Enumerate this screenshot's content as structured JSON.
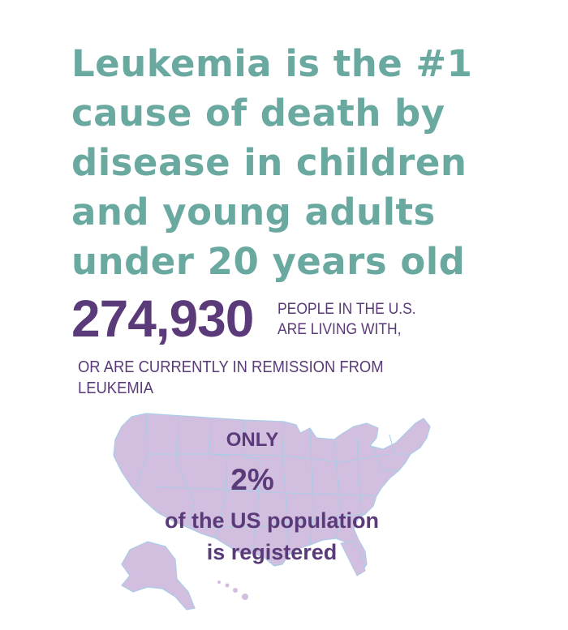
{
  "headline": {
    "lines": [
      "Leukemia is the #1",
      "cause of death by",
      "disease in children",
      "and young adults",
      "under 20 years old"
    ]
  },
  "stat": {
    "number": "274,930",
    "side_lines": [
      "PEOPLE IN THE U.S.",
      "ARE LIVING WITH,"
    ],
    "continuation_lines": [
      "OR ARE CURRENTLY IN REMISSION FROM",
      "LEUKEMIA"
    ]
  },
  "map": {
    "label_top": "ONLY",
    "percent": "2%",
    "line1": "of the US population",
    "line2": "is registered"
  },
  "colors": {
    "headline": "#6aa9a0",
    "stat_text": "#5a3a78",
    "map_fill": "#d2bedf",
    "map_border": "#a9cde6"
  }
}
